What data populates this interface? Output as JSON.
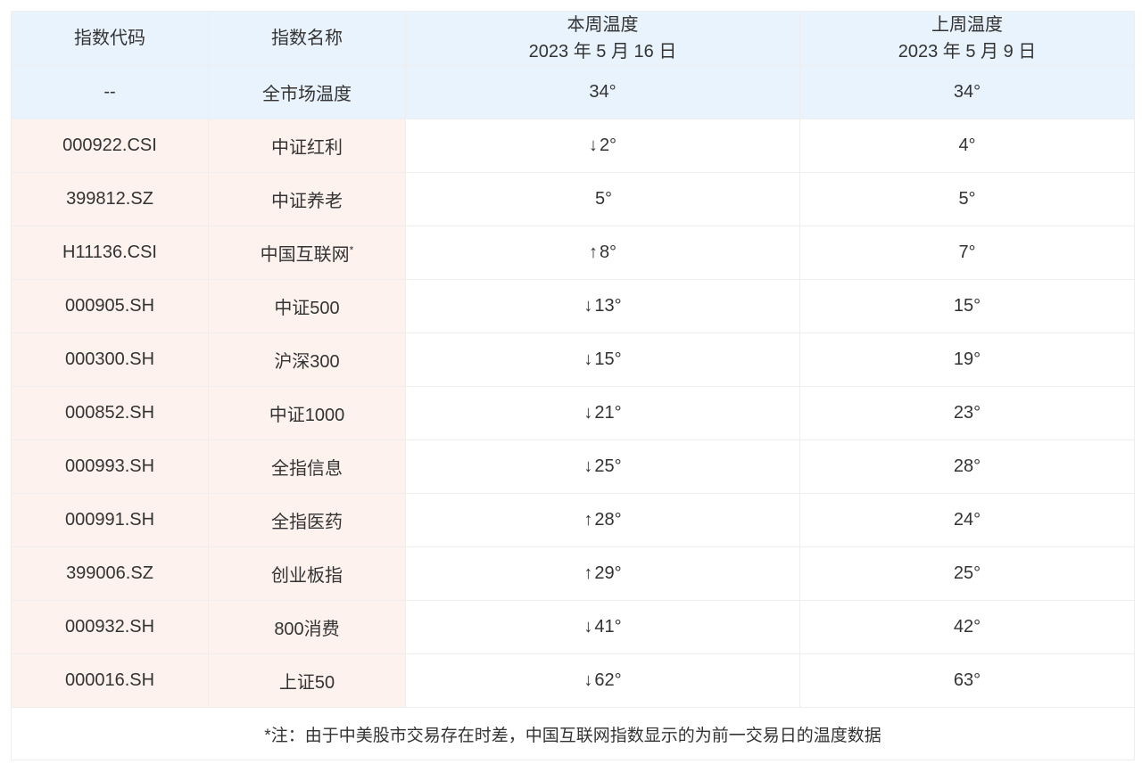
{
  "header": {
    "code": "指数代码",
    "name": "指数名称",
    "this_week": "本周温度",
    "this_week_date": "2023 年 5 月 16 日",
    "last_week": "上周温度",
    "last_week_date": "2023 年 5 月 9 日"
  },
  "market": {
    "code": "--",
    "name": "全市场温度",
    "this_week": "34°",
    "last_week": "34°"
  },
  "rows": [
    {
      "code": "000922.CSI",
      "name": "中证红利",
      "mark": "",
      "trend": "↓",
      "this_week": "2°",
      "last_week": "4°"
    },
    {
      "code": "399812.SZ",
      "name": "中证养老",
      "mark": "",
      "trend": "",
      "this_week": "5°",
      "last_week": "5°"
    },
    {
      "code": "H11136.CSI",
      "name": "中国互联网",
      "mark": "*",
      "trend": "↑",
      "this_week": "8°",
      "last_week": "7°"
    },
    {
      "code": "000905.SH",
      "name": "中证500",
      "mark": "",
      "trend": "↓",
      "this_week": "13°",
      "last_week": "15°"
    },
    {
      "code": "000300.SH",
      "name": "沪深300",
      "mark": "",
      "trend": "↓",
      "this_week": "15°",
      "last_week": "19°"
    },
    {
      "code": "000852.SH",
      "name": "中证1000",
      "mark": "",
      "trend": "↓",
      "this_week": "21°",
      "last_week": "23°"
    },
    {
      "code": "000993.SH",
      "name": "全指信息",
      "mark": "",
      "trend": "↓",
      "this_week": "25°",
      "last_week": "28°"
    },
    {
      "code": "000991.SH",
      "name": "全指医药",
      "mark": "",
      "trend": "↑",
      "this_week": "28°",
      "last_week": "24°"
    },
    {
      "code": "399006.SZ",
      "name": "创业板指",
      "mark": "",
      "trend": "↑",
      "this_week": "29°",
      "last_week": "25°"
    },
    {
      "code": "000932.SH",
      "name": "800消费",
      "mark": "",
      "trend": "↓",
      "this_week": "41°",
      "last_week": "42°"
    },
    {
      "code": "000016.SH",
      "name": "上证50",
      "mark": "",
      "trend": "↓",
      "this_week": "62°",
      "last_week": "63°"
    }
  ],
  "footnote": "*注：由于中美股市交易存在时差，中国互联网指数显示的为前一交易日的温度数据",
  "colors": {
    "header_bg": "#e9f3fd",
    "fixed_col_bg": "#fdf2ee"
  }
}
